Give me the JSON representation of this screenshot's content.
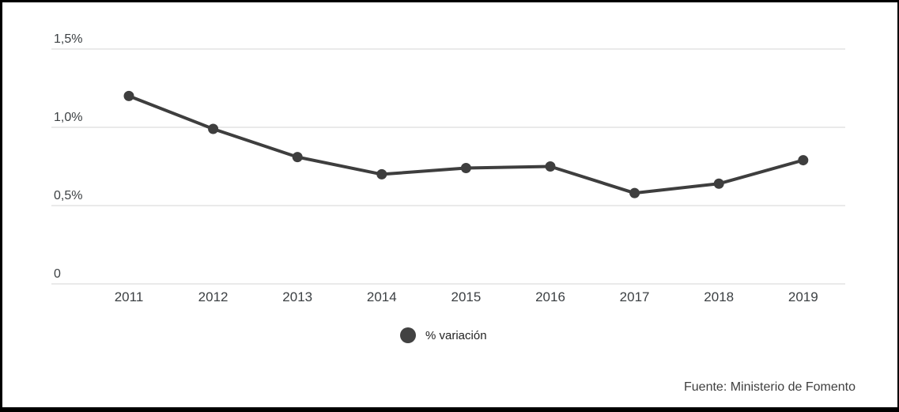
{
  "chart_data": {
    "type": "line",
    "title": "",
    "xlabel": "",
    "ylabel": "",
    "categories": [
      "2011",
      "2012",
      "2013",
      "2014",
      "2015",
      "2016",
      "2017",
      "2018",
      "2019"
    ],
    "series": [
      {
        "name": "% variación",
        "values": [
          1.2,
          0.99,
          0.81,
          0.7,
          0.74,
          0.75,
          0.58,
          0.64,
          0.79
        ]
      }
    ],
    "ylim": [
      0,
      1.5
    ],
    "yticks": [
      {
        "value": 0,
        "label": "0"
      },
      {
        "value": 0.5,
        "label": "0,5%"
      },
      {
        "value": 1.0,
        "label": "1,0%"
      },
      {
        "value": 1.5,
        "label": "1,5%"
      }
    ],
    "grid": true,
    "legend_position": "bottom",
    "line_color": "#3e3e3e",
    "point_color": "#3e3e3e",
    "gridline_color": "#e3e3e3",
    "axis_label_color": "#3c4043"
  },
  "legend": {
    "label": "% variación",
    "marker_color": "#424242"
  },
  "footer": {
    "source_label": "Fuente: Ministerio de Fomento"
  }
}
